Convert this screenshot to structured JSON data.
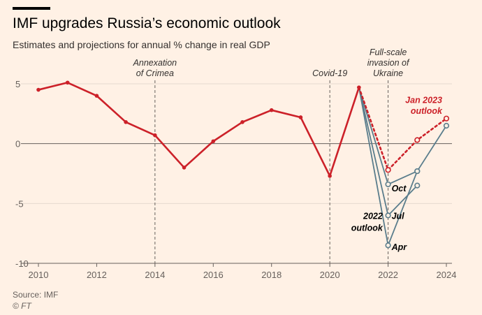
{
  "header": {
    "title": "IMF upgrades Russia’s economic outlook",
    "subtitle": "Estimates and projections for annual % change in real GDP"
  },
  "footer": {
    "source": "Source: IMF",
    "copyright": "© FT"
  },
  "colors": {
    "actual": "#cc2129",
    "jan2023": "#cc2129",
    "outlook2022": "#5a7d8c",
    "background": "#fff1e5",
    "axis_text": "#66605c"
  },
  "chart_data": {
    "type": "line",
    "title": "IMF upgrades Russia’s economic outlook",
    "subtitle": "Estimates and projections for annual % change in real GDP",
    "xlabel": "",
    "ylabel": "",
    "xlim": [
      2010,
      2024
    ],
    "ylim": [
      -10,
      5
    ],
    "x_ticks": [
      "2010",
      "2012",
      "2014",
      "2016",
      "2018",
      "2020",
      "2022",
      "2024"
    ],
    "y_ticks": [
      "5",
      "0",
      "-5",
      "-10"
    ],
    "grid": "horizontal",
    "series": [
      {
        "name": "",
        "style": "solid",
        "x": [
          2010,
          2011,
          2012,
          2013,
          2014,
          2015,
          2016,
          2017,
          2018,
          2019,
          2020,
          2021
        ],
        "values": [
          4.5,
          5.1,
          4.0,
          1.8,
          0.7,
          -2.0,
          0.2,
          1.8,
          2.8,
          2.2,
          -2.7,
          4.7
        ]
      },
      {
        "name": "Jan 2023 outlook",
        "style": "dotted",
        "x": [
          2021,
          2022,
          2023,
          2024
        ],
        "values": [
          4.7,
          -2.2,
          0.3,
          2.1
        ]
      },
      {
        "name": "Oct",
        "style": "solid",
        "x": [
          2021,
          2022,
          2023,
          2024
        ],
        "values": [
          4.7,
          -3.4,
          -2.3,
          1.5
        ]
      },
      {
        "name": "Jul",
        "style": "solid",
        "x": [
          2021,
          2022,
          2023
        ],
        "values": [
          4.7,
          -6.0,
          -3.5
        ]
      },
      {
        "name": "Apr",
        "style": "solid",
        "x": [
          2021,
          2022,
          2023
        ],
        "values": [
          4.7,
          -8.5,
          -2.3
        ]
      }
    ],
    "annotations": [
      {
        "x": 2014,
        "text": [
          "Annexation",
          "of Crimea"
        ]
      },
      {
        "x": 2020,
        "text": [
          "Covid-19"
        ]
      },
      {
        "x": 2022,
        "text": [
          "Full-scale",
          "invasion of",
          "Ukraine"
        ]
      }
    ],
    "labels": {
      "jan": [
        "Jan 2023",
        "outlook"
      ],
      "outlook2022": [
        "2022",
        "outlook"
      ],
      "oct": "Oct",
      "jul": "Jul",
      "apr": "Apr"
    }
  }
}
